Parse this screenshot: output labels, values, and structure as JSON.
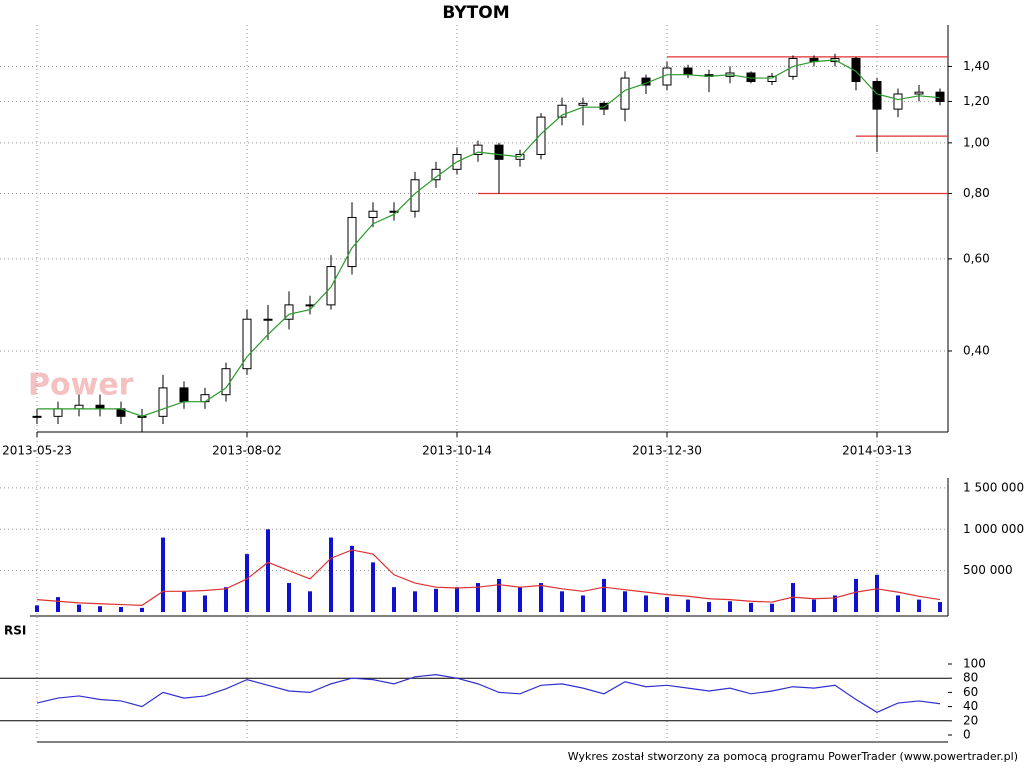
{
  "chart_data": {
    "type": "candlestick",
    "title": "BYTOM",
    "watermark": "Power",
    "footer": "Wykres został stworzony za pomocą programu PowerTrader (www.powertrader.pl)",
    "categories": [
      "2013-05-23",
      null,
      null,
      null,
      null,
      null,
      null,
      null,
      null,
      null,
      "2013-08-02",
      null,
      null,
      null,
      null,
      null,
      null,
      null,
      null,
      null,
      "2013-10-14",
      null,
      null,
      null,
      null,
      null,
      null,
      null,
      null,
      null,
      "2013-12-30",
      null,
      null,
      null,
      null,
      null,
      null,
      null,
      null,
      null,
      "2014-03-13",
      null,
      null,
      null
    ],
    "open": [
      0.3,
      0.3,
      0.31,
      0.315,
      0.31,
      0.3,
      0.3,
      0.34,
      0.32,
      0.33,
      0.37,
      0.46,
      0.46,
      0.49,
      0.49,
      0.58,
      0.72,
      0.74,
      0.74,
      0.85,
      0.89,
      0.95,
      0.99,
      0.93,
      0.95,
      1.12,
      1.18,
      1.19,
      1.16,
      1.33,
      1.29,
      1.39,
      1.35,
      1.34,
      1.36,
      1.31,
      1.34,
      1.45,
      1.43,
      1.45,
      1.31,
      1.16,
      1.24,
      1.25
    ],
    "high": [
      0.31,
      0.32,
      0.33,
      0.33,
      0.32,
      0.31,
      0.36,
      0.35,
      0.34,
      0.38,
      0.48,
      0.49,
      0.52,
      0.51,
      0.61,
      0.77,
      0.77,
      0.77,
      0.88,
      0.92,
      0.98,
      1.01,
      1.0,
      0.97,
      1.14,
      1.22,
      1.22,
      1.2,
      1.37,
      1.35,
      1.43,
      1.41,
      1.38,
      1.4,
      1.37,
      1.36,
      1.47,
      1.47,
      1.48,
      1.46,
      1.33,
      1.27,
      1.29,
      1.27
    ],
    "low": [
      0.29,
      0.29,
      0.3,
      0.3,
      0.29,
      0.28,
      0.29,
      0.31,
      0.31,
      0.32,
      0.36,
      0.42,
      0.44,
      0.47,
      0.48,
      0.56,
      0.69,
      0.71,
      0.72,
      0.82,
      0.87,
      0.92,
      0.8,
      0.9,
      0.93,
      1.08,
      1.08,
      1.13,
      1.1,
      1.24,
      1.26,
      1.33,
      1.25,
      1.3,
      1.3,
      1.29,
      1.32,
      1.4,
      1.4,
      1.26,
      0.96,
      1.12,
      1.2,
      1.18
    ],
    "close": [
      0.3,
      0.31,
      0.315,
      0.31,
      0.3,
      0.3,
      0.34,
      0.32,
      0.33,
      0.37,
      0.46,
      0.46,
      0.49,
      0.49,
      0.58,
      0.72,
      0.74,
      0.74,
      0.85,
      0.89,
      0.95,
      0.99,
      0.93,
      0.95,
      1.12,
      1.18,
      1.19,
      1.16,
      1.33,
      1.29,
      1.39,
      1.35,
      1.34,
      1.36,
      1.31,
      1.34,
      1.45,
      1.43,
      1.45,
      1.31,
      1.16,
      1.24,
      1.25,
      1.2
    ],
    "moving_average": {
      "color": "#2a9a2a",
      "values": [
        0.31,
        0.31,
        0.31,
        0.31,
        0.31,
        0.3,
        0.31,
        0.32,
        0.32,
        0.34,
        0.39,
        0.43,
        0.47,
        0.48,
        0.53,
        0.63,
        0.7,
        0.73,
        0.8,
        0.86,
        0.92,
        0.96,
        0.95,
        0.94,
        1.04,
        1.13,
        1.17,
        1.17,
        1.26,
        1.3,
        1.35,
        1.35,
        1.34,
        1.35,
        1.33,
        1.33,
        1.4,
        1.43,
        1.44,
        1.37,
        1.24,
        1.21,
        1.23,
        1.22
      ]
    },
    "levels": [
      {
        "value": 1.46,
        "from": 30,
        "color": "#e03030"
      },
      {
        "value": 1.03,
        "from": 39,
        "color": "#e03030"
      },
      {
        "value": 0.8,
        "from": 21,
        "color": "#e03030"
      }
    ],
    "log_scale": true,
    "ylim": [
      0.28,
      1.68
    ],
    "yticks": [
      {
        "value": 0.4,
        "label": "0,40"
      },
      {
        "value": 0.6,
        "label": "0,60"
      },
      {
        "value": 0.8,
        "label": "0,80"
      },
      {
        "value": 1.0,
        "label": "1,00"
      },
      {
        "value": 1.2,
        "label": "1,20"
      },
      {
        "value": 1.4,
        "label": "1,40"
      }
    ],
    "grid": true,
    "volume": {
      "color": "#1010d0",
      "values": [
        80000,
        180000,
        90000,
        70000,
        60000,
        50000,
        900000,
        250000,
        200000,
        300000,
        700000,
        1000000,
        350000,
        250000,
        900000,
        800000,
        600000,
        300000,
        250000,
        280000,
        300000,
        350000,
        400000,
        300000,
        350000,
        250000,
        200000,
        400000,
        250000,
        200000,
        180000,
        150000,
        120000,
        130000,
        110000,
        100000,
        350000,
        150000,
        200000,
        400000,
        450000,
        200000,
        150000,
        120000
      ],
      "average": {
        "color": "#e03030",
        "values": [
          150000,
          130000,
          110000,
          100000,
          90000,
          80000,
          250000,
          250000,
          260000,
          280000,
          400000,
          600000,
          500000,
          400000,
          650000,
          750000,
          700000,
          450000,
          350000,
          300000,
          290000,
          300000,
          330000,
          300000,
          320000,
          280000,
          250000,
          300000,
          270000,
          240000,
          210000,
          190000,
          160000,
          150000,
          130000,
          120000,
          180000,
          160000,
          170000,
          240000,
          280000,
          240000,
          190000,
          150000
        ]
      },
      "ylim": [
        0,
        1620000
      ],
      "yticks": [
        {
          "value": 500000,
          "label": "500 000"
        },
        {
          "value": 1000000,
          "label": "1 000 000"
        },
        {
          "value": 1500000,
          "label": "1 500 000"
        }
      ]
    },
    "rsi": {
      "title": "RSI",
      "color": "#3030d0",
      "values": [
        45,
        52,
        55,
        50,
        48,
        40,
        60,
        52,
        55,
        65,
        78,
        70,
        62,
        60,
        72,
        80,
        78,
        72,
        82,
        85,
        80,
        72,
        60,
        58,
        70,
        72,
        66,
        58,
        75,
        68,
        70,
        66,
        62,
        66,
        58,
        62,
        68,
        66,
        70,
        50,
        32,
        45,
        48,
        44
      ],
      "levels": [
        20,
        80
      ],
      "ylim": [
        0,
        100
      ],
      "yticks": [
        0,
        20,
        40,
        60,
        80,
        100
      ]
    }
  }
}
